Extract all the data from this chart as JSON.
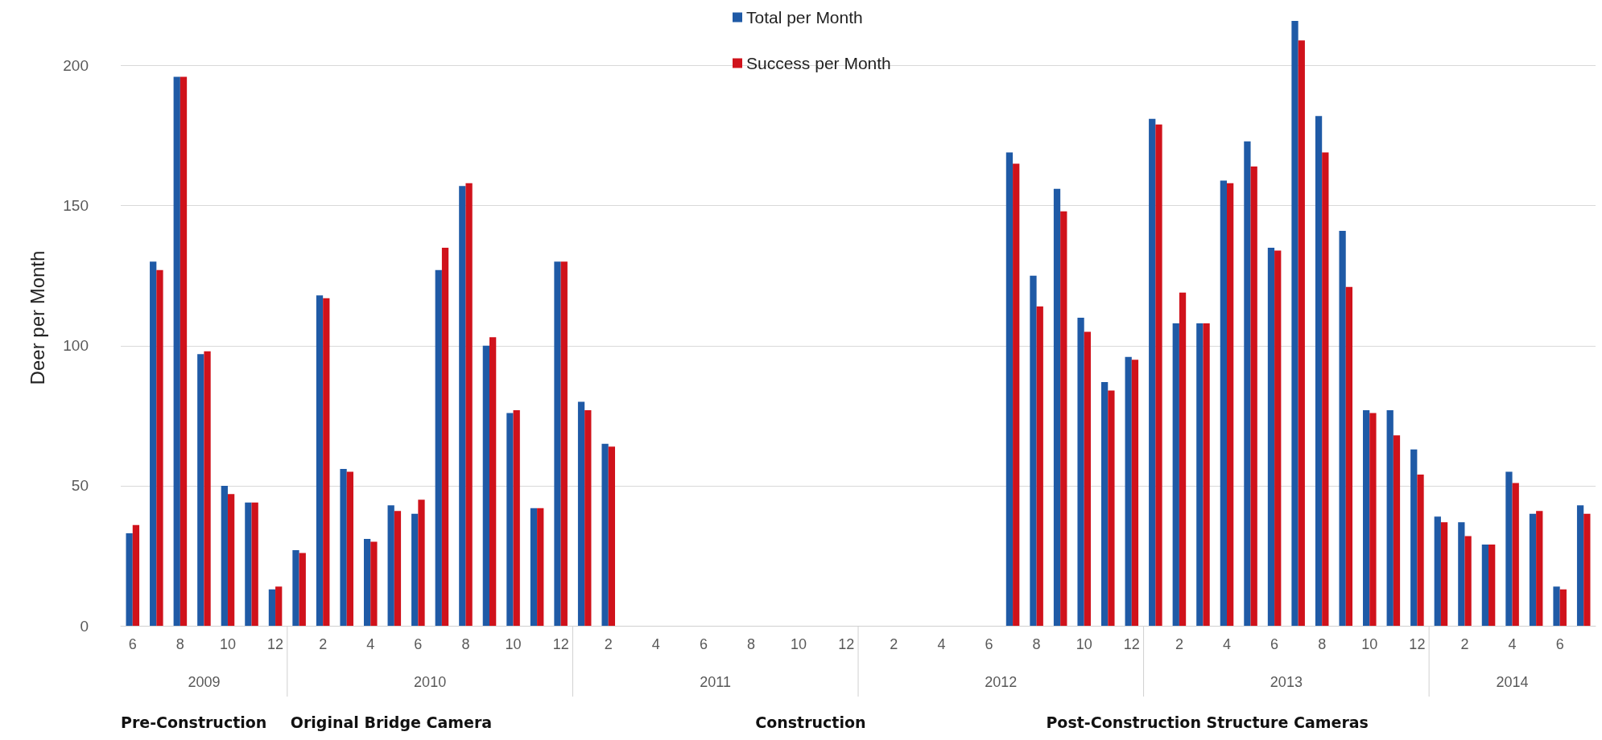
{
  "chart_data": {
    "type": "bar",
    "ylabel": "Deer per Month",
    "categories": [
      "6",
      null,
      "8",
      null,
      "10",
      null,
      "12",
      null,
      "2",
      null,
      "4",
      null,
      "6",
      null,
      "8",
      null,
      "10",
      null,
      "12",
      null,
      "2",
      null,
      "4",
      null,
      "6",
      null,
      "8",
      null,
      "10",
      null,
      "12",
      null,
      "2",
      null,
      "4",
      null,
      "6",
      null,
      "8",
      null,
      "10",
      null,
      "12",
      null,
      "2",
      null,
      "4",
      null,
      "6",
      null,
      "8",
      null,
      "10",
      null,
      "12",
      null,
      "2",
      null,
      "4",
      null,
      "6",
      null
    ],
    "series": [
      {
        "name": "Total per Month",
        "color": "#1f5aa6",
        "values": [
          33,
          130,
          196,
          97,
          50,
          44,
          13,
          27,
          118,
          56,
          31,
          43,
          40,
          127,
          157,
          100,
          76,
          42,
          130,
          80,
          65,
          null,
          null,
          null,
          null,
          null,
          null,
          null,
          null,
          null,
          null,
          null,
          null,
          null,
          null,
          null,
          null,
          169,
          125,
          156,
          110,
          87,
          96,
          181,
          108,
          108,
          159,
          173,
          135,
          216,
          182,
          141,
          77,
          77,
          63,
          39,
          37,
          29,
          55,
          40,
          14,
          43
        ]
      },
      {
        "name": "Success per Month",
        "color": "#d0121b",
        "values": [
          36,
          127,
          196,
          98,
          47,
          44,
          14,
          26,
          117,
          55,
          30,
          41,
          45,
          135,
          158,
          103,
          77,
          42,
          130,
          77,
          64,
          null,
          null,
          null,
          null,
          null,
          null,
          null,
          null,
          null,
          null,
          null,
          null,
          null,
          null,
          null,
          null,
          165,
          114,
          148,
          105,
          84,
          95,
          179,
          119,
          108,
          158,
          164,
          134,
          209,
          169,
          121,
          76,
          68,
          54,
          37,
          32,
          29,
          51,
          41,
          13,
          40
        ]
      }
    ],
    "ylim": [
      0,
      220
    ],
    "yticks": [
      0,
      50,
      100,
      150,
      200
    ],
    "grid": "y",
    "legend": "top",
    "annotations": [
      "2009",
      "2010",
      "2011",
      "2012",
      "2013",
      "2014",
      "Pre-Construction",
      "Original Bridge Camera",
      "Construction",
      "Post-Construction Structure Cameras"
    ]
  }
}
